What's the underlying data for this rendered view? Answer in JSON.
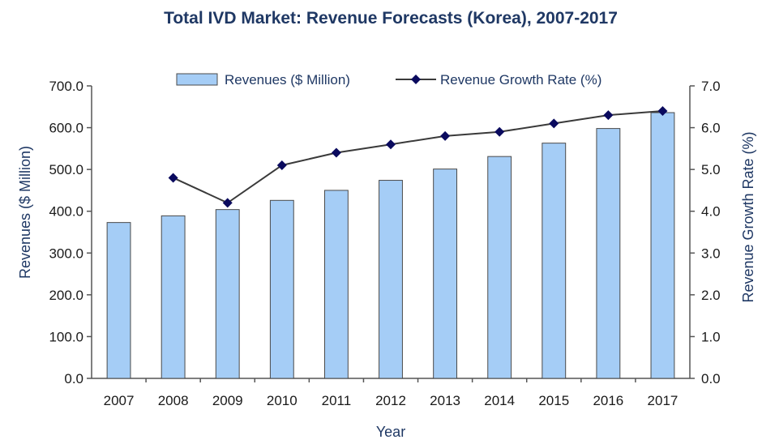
{
  "chart_data": {
    "type": "bar+line",
    "title": "Total IVD Market: Revenue Forecasts (Korea), 2007-2017",
    "xlabel": "Year",
    "ylabel": "Revenues ($ Million)",
    "y2label": "Revenue Growth Rate (%)",
    "categories": [
      "2007",
      "2008",
      "2009",
      "2010",
      "2011",
      "2012",
      "2013",
      "2014",
      "2015",
      "2016",
      "2017"
    ],
    "ylim": [
      0,
      700
    ],
    "y2lim": [
      0,
      7
    ],
    "yticks": [
      "0.0",
      "100.0",
      "200.0",
      "300.0",
      "400.0",
      "500.0",
      "600.0",
      "700.0"
    ],
    "y2ticks": [
      "0.0",
      "1.0",
      "2.0",
      "3.0",
      "4.0",
      "5.0",
      "6.0",
      "7.0"
    ],
    "series": [
      {
        "name": "Revenues ($ Million)",
        "type": "bar",
        "values": [
          373,
          389,
          404,
          426,
          450,
          474,
          501,
          531,
          563,
          598,
          636
        ]
      },
      {
        "name": "Revenue Growth Rate (%)",
        "type": "line",
        "axis": "right",
        "values": [
          null,
          4.8,
          4.2,
          5.1,
          5.4,
          5.6,
          5.8,
          5.9,
          6.1,
          6.3,
          6.4
        ]
      }
    ],
    "legend": "top",
    "colors": {
      "bar_fill": "#a5cdf6",
      "bar_stroke": "#4a4a4a",
      "line": "#3a3a3a",
      "marker": "#0a0a5e",
      "text": "#1f3864"
    }
  }
}
